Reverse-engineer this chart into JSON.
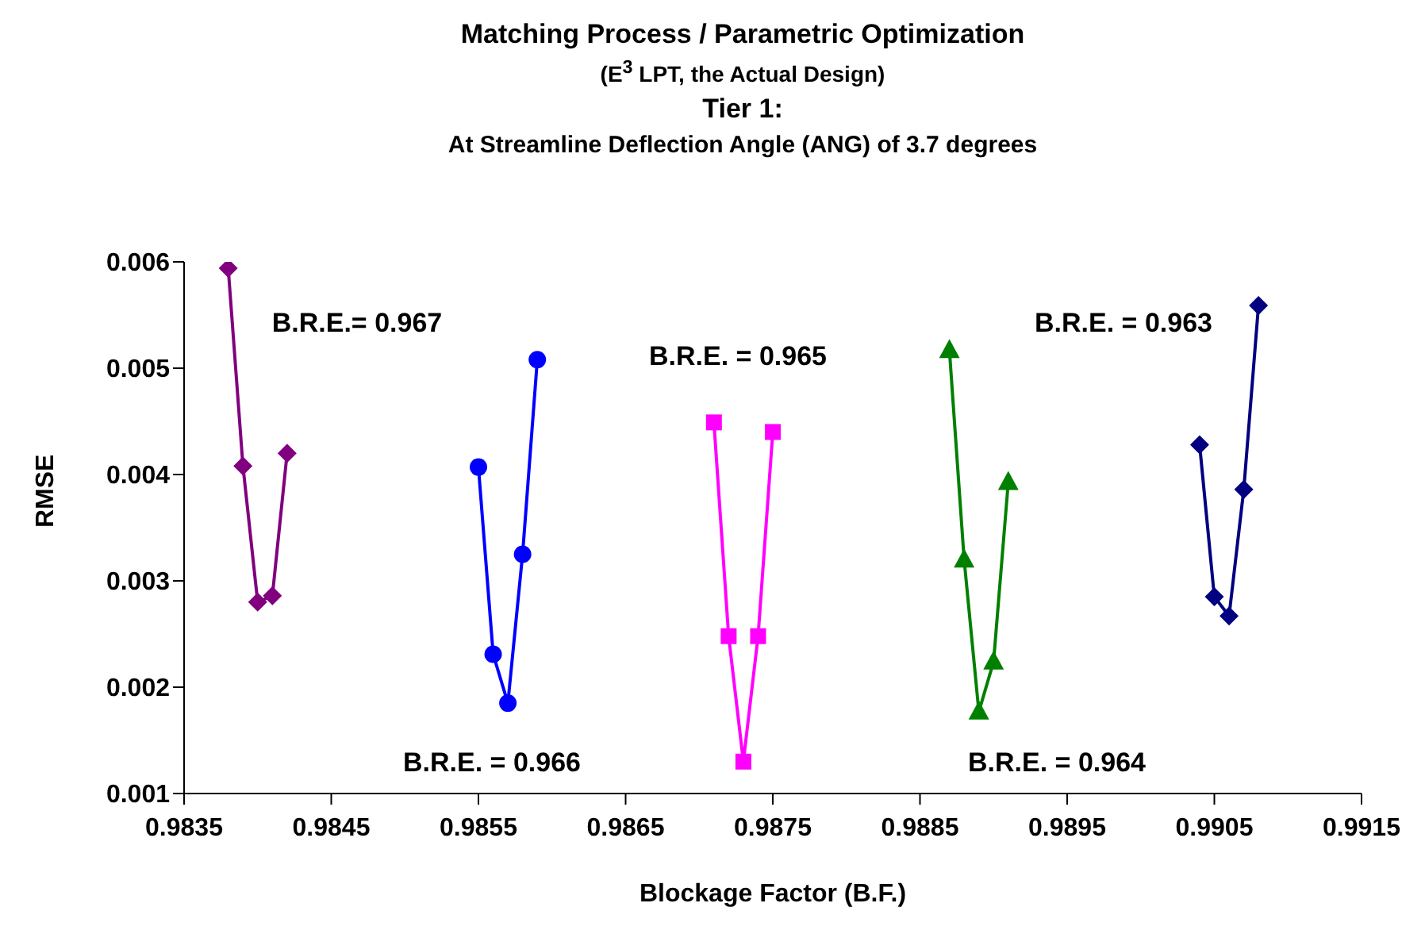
{
  "chart_data": {
    "type": "line",
    "title": "Matching Process / Parametric Optimization",
    "subtitle": "(E$^{3}$ LPT, the Actual Design)\nTier 1:\nAt Streamline Deflection Angle (ANG) of 3.7 degrees",
    "xlabel": "Blockage Factor (B.F.)",
    "ylabel": "RMSE",
    "xlim": [
      0.9835,
      0.9915
    ],
    "xticks": [
      0.9835,
      0.9845,
      0.9855,
      0.9865,
      0.9875,
      0.9885,
      0.9895,
      0.9905,
      0.9915
    ],
    "ylim": [
      0.001,
      0.006
    ],
    "yticks": [
      0.001,
      0.002,
      0.003,
      0.004,
      0.005,
      0.006
    ],
    "series": [
      {
        "color": "#800080",
        "marker": "diamond",
        "x": [
          0.9838,
          0.9839,
          0.984,
          0.9841,
          0.9842
        ],
        "values": [
          0.00594,
          0.00408,
          0.0028,
          0.00286,
          0.0042
        ]
      },
      {
        "color": "#0000ff",
        "marker": "circle",
        "x": [
          0.9855,
          0.9856,
          0.9857,
          0.9858,
          0.9859
        ],
        "values": [
          0.00407,
          0.00231,
          0.00185,
          0.00325,
          0.00508
        ]
      },
      {
        "color": "#ff00ff",
        "marker": "square",
        "x": [
          0.9871,
          0.9872,
          0.9873,
          0.9874,
          0.9875
        ],
        "values": [
          0.00449,
          0.00248,
          0.0013,
          0.00248,
          0.0044
        ]
      },
      {
        "color": "#008000",
        "marker": "triangle",
        "x": [
          0.9887,
          0.9888,
          0.9889,
          0.989,
          0.9891
        ],
        "values": [
          0.00517,
          0.0032,
          0.00177,
          0.00224,
          0.00393
        ]
      },
      {
        "color": "#000080",
        "marker": "diamond",
        "x": [
          0.9904,
          0.9905,
          0.9906,
          0.9907,
          0.9908
        ],
        "values": [
          0.00428,
          0.00285,
          0.00267,
          0.00386,
          0.00559
        ]
      }
    ],
    "annotations": [
      "B.R.E.= 0.967",
      "B.R.E. = 0.966",
      "B.R.E. = 0.965",
      "B.R.E. = 0.964",
      "B.R.E. = 0.963"
    ]
  }
}
